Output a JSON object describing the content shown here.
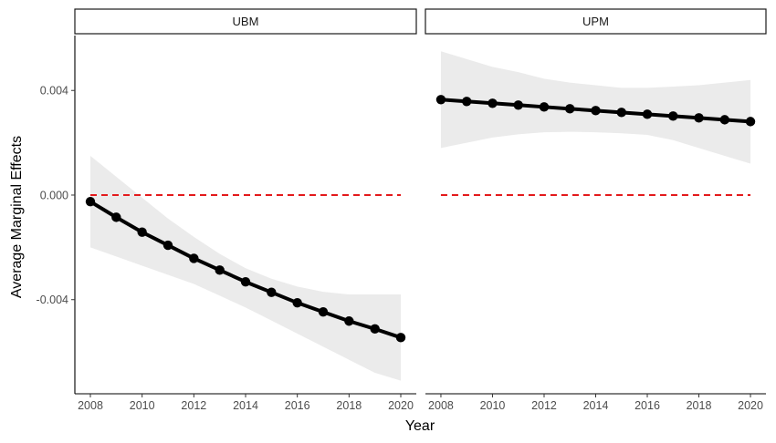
{
  "chart_data": {
    "type": "line",
    "xlabel": "Year",
    "ylabel": "Average Marginal Effects",
    "ylim": [
      -0.0076,
      0.0061
    ],
    "xlim": [
      2007.4,
      2020.6
    ],
    "x_ticks": [
      2008,
      2010,
      2012,
      2014,
      2016,
      2018,
      2020
    ],
    "y_ticks": [
      -0.004,
      0.0,
      0.004
    ],
    "y_tick_labels": [
      "-0.004",
      "0.000",
      "0.004"
    ],
    "x": [
      2008,
      2009,
      2010,
      2011,
      2012,
      2013,
      2014,
      2015,
      2016,
      2017,
      2018,
      2019,
      2020
    ],
    "reference_line": {
      "y": 0.0,
      "style": "dashed",
      "color": "#e31a1c"
    },
    "grid": false,
    "colors": {
      "line": "#000000",
      "ribbon": "#ebebeb",
      "reference": "#e31a1c"
    },
    "panels": [
      {
        "label": "UBM",
        "series": [
          {
            "values": [
              -0.00025,
              -0.00085,
              -0.00142,
              -0.00192,
              -0.00242,
              -0.00287,
              -0.00332,
              -0.00372,
              -0.00412,
              -0.00447,
              -0.00482,
              -0.00512,
              -0.00545
            ],
            "lower": [
              -0.002,
              -0.00235,
              -0.0027,
              -0.00305,
              -0.0034,
              -0.00385,
              -0.0043,
              -0.0048,
              -0.0053,
              -0.0058,
              -0.0063,
              -0.0068,
              -0.0071
            ],
            "upper": [
              0.0015,
              0.0007,
              -0.0001,
              -0.0009,
              -0.0016,
              -0.00225,
              -0.0028,
              -0.0032,
              -0.0035,
              -0.0037,
              -0.0038,
              -0.0038,
              -0.0038
            ]
          }
        ]
      },
      {
        "label": "UPM",
        "series": [
          {
            "values": [
              0.00365,
              0.00358,
              0.00351,
              0.00344,
              0.00337,
              0.0033,
              0.00323,
              0.00316,
              0.00309,
              0.00302,
              0.00295,
              0.00288,
              0.00281
            ],
            "lower": [
              0.0018,
              0.002,
              0.0022,
              0.00232,
              0.0024,
              0.00242,
              0.0024,
              0.00236,
              0.0023,
              0.0021,
              0.0018,
              0.0015,
              0.0012
            ],
            "upper": [
              0.0055,
              0.0052,
              0.0049,
              0.0047,
              0.00445,
              0.0043,
              0.0042,
              0.0041,
              0.0041,
              0.00415,
              0.0042,
              0.0043,
              0.0044
            ]
          }
        ]
      }
    ]
  }
}
